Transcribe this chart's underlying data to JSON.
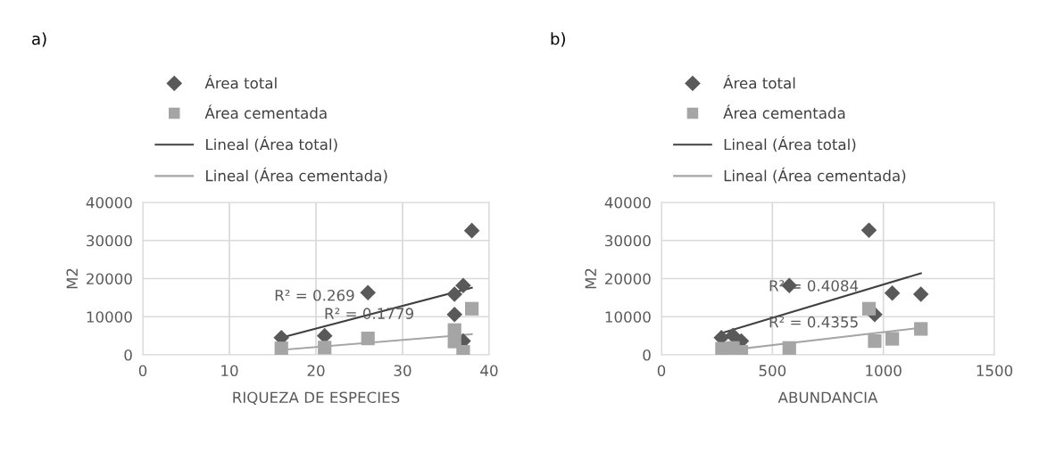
{
  "chart_data": [
    {
      "type": "scatter",
      "title": "a)",
      "xlabel": "RIQUEZA DE ESPECIES",
      "ylabel": "M2",
      "xlim": [
        0,
        40
      ],
      "xticks": [
        0,
        10,
        20,
        30,
        40
      ],
      "ylim": [
        0,
        40000
      ],
      "yticks": [
        0,
        10000,
        20000,
        30000,
        40000
      ],
      "grid": true,
      "legend": "top",
      "series": [
        {
          "name": "Área total",
          "color": "#595959",
          "marker": "diamond",
          "x": [
            16,
            21,
            26,
            36,
            37,
            36,
            38,
            37
          ],
          "values": [
            4500,
            5000,
            16300,
            15900,
            18200,
            10600,
            32600,
            3600
          ]
        },
        {
          "name": "Área cementada",
          "color": "#a5a5a5",
          "marker": "square",
          "x": [
            16,
            21,
            26,
            36,
            36,
            37,
            38
          ],
          "values": [
            1700,
            1900,
            4300,
            6500,
            3500,
            800,
            12100
          ]
        },
        {
          "name": "Lineal (Área total)",
          "type": "line",
          "color": "#404040",
          "marker": "none",
          "x": [
            16,
            38
          ],
          "values": [
            4500,
            17600
          ]
        },
        {
          "name": "Lineal (Área cementada)",
          "type": "line",
          "color": "#a5a5a5",
          "marker": "none",
          "x": [
            16,
            38
          ],
          "values": [
            1300,
            5400
          ]
        }
      ],
      "annotations": [
        "R² = 0.269",
        "R² = 0.1779"
      ]
    },
    {
      "type": "scatter",
      "title": "b)",
      "xlabel": "ABUNDANCIA",
      "ylabel": "M2",
      "xlim": [
        0,
        1500
      ],
      "xticks": [
        0,
        500,
        1000,
        1500
      ],
      "ylim": [
        0,
        40000
      ],
      "yticks": [
        0,
        10000,
        20000,
        30000,
        40000
      ],
      "grid": true,
      "legend": "top",
      "series": [
        {
          "name": "Área total",
          "color": "#595959",
          "marker": "diamond",
          "x": [
            270,
            322,
            360,
            576,
            935,
            961,
            1040,
            1169
          ],
          "values": [
            4500,
            5100,
            3600,
            18200,
            32700,
            10600,
            16200,
            15900
          ]
        },
        {
          "name": "Área cementada",
          "color": "#a5a5a5",
          "marker": "square",
          "x": [
            273,
            322,
            360,
            576,
            935,
            961,
            1040,
            1169
          ],
          "values": [
            1600,
            1800,
            800,
            1800,
            12100,
            3600,
            4200,
            6800
          ]
        },
        {
          "name": "Lineal (Área total)",
          "type": "line",
          "color": "#404040",
          "marker": "none",
          "x": [
            270,
            1169
          ],
          "values": [
            5700,
            21400
          ]
        },
        {
          "name": "Lineal (Área cementada)",
          "type": "line",
          "color": "#a5a5a5",
          "marker": "none",
          "x": [
            270,
            1169
          ],
          "values": [
            1000,
            7100
          ]
        }
      ],
      "annotations": [
        "R² = 0.4084",
        "R² = 0.4355"
      ]
    }
  ]
}
